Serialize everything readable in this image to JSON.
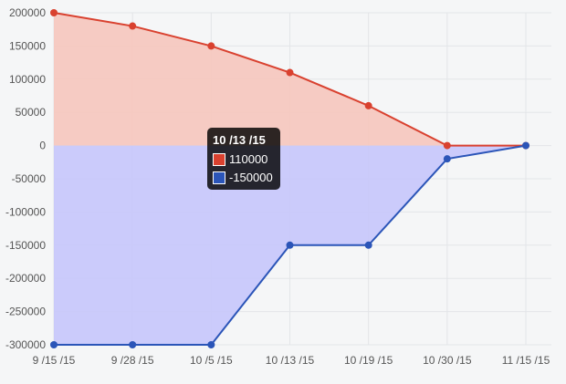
{
  "chart_data": {
    "type": "area",
    "categories": [
      "9 /15 /15",
      "9 /28 /15",
      "10 /5 /15",
      "10 /13 /15",
      "10 /19 /15",
      "10 /30 /15",
      "11 /15 /15"
    ],
    "series": [
      {
        "values": [
          200000,
          180000,
          150000,
          110000,
          60000,
          0,
          0
        ],
        "color": "#d9412f",
        "fill": "#f6c6bd"
      },
      {
        "values": [
          -300000,
          -300000,
          -300000,
          -150000,
          -150000,
          -20000,
          0
        ],
        "color": "#2b55b8",
        "fill": "#c7c7fb"
      }
    ],
    "ylim": [
      -300000,
      200000
    ],
    "yticks": [
      200000,
      150000,
      100000,
      50000,
      0,
      -50000,
      -100000,
      -150000,
      -200000,
      -250000,
      -300000
    ],
    "grid": true,
    "legend": "none",
    "tooltip": {
      "title": "10 /13 /15",
      "rows": [
        {
          "value": "110000",
          "color": "#d9412f"
        },
        {
          "value": "-150000",
          "color": "#2b55b8"
        }
      ]
    }
  }
}
